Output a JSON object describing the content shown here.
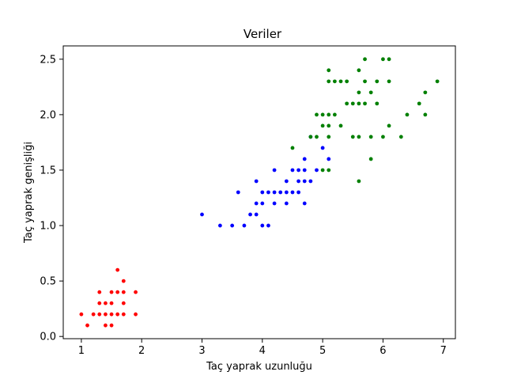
{
  "chart_data": {
    "type": "scatter",
    "title": "Veriler",
    "xlabel": "Taç yaprak uzunluğu",
    "ylabel": "Taç yaprak genişliği",
    "xlim": [
      0.7,
      7.2
    ],
    "ylim": [
      -0.02,
      2.62
    ],
    "xticks": [
      1,
      2,
      3,
      4,
      5,
      6,
      7
    ],
    "yticks": [
      0.0,
      0.5,
      1.0,
      1.5,
      2.0,
      2.5
    ],
    "xtick_labels": [
      "1",
      "2",
      "3",
      "4",
      "5",
      "6",
      "7"
    ],
    "ytick_labels": [
      "0.0",
      "0.5",
      "1.0",
      "1.5",
      "2.0",
      "2.5"
    ],
    "grid": false,
    "legend": null,
    "series": [
      {
        "color": "#ff0000",
        "points": [
          [
            1.0,
            0.2
          ],
          [
            1.1,
            0.1
          ],
          [
            1.2,
            0.2
          ],
          [
            1.3,
            0.2
          ],
          [
            1.4,
            0.2
          ],
          [
            1.5,
            0.2
          ],
          [
            1.6,
            0.2
          ],
          [
            1.7,
            0.2
          ],
          [
            1.9,
            0.2
          ],
          [
            1.3,
            0.3
          ],
          [
            1.4,
            0.3
          ],
          [
            1.5,
            0.3
          ],
          [
            1.7,
            0.3
          ],
          [
            1.3,
            0.4
          ],
          [
            1.5,
            0.4
          ],
          [
            1.6,
            0.4
          ],
          [
            1.7,
            0.4
          ],
          [
            1.9,
            0.4
          ],
          [
            1.4,
            0.1
          ],
          [
            1.5,
            0.1
          ],
          [
            1.6,
            0.6
          ],
          [
            1.7,
            0.5
          ]
        ]
      },
      {
        "color": "#0000ff",
        "points": [
          [
            3.0,
            1.1
          ],
          [
            3.3,
            1.0
          ],
          [
            3.5,
            1.0
          ],
          [
            3.6,
            1.3
          ],
          [
            3.7,
            1.0
          ],
          [
            3.8,
            1.1
          ],
          [
            3.9,
            1.1
          ],
          [
            3.9,
            1.2
          ],
          [
            3.9,
            1.4
          ],
          [
            4.0,
            1.0
          ],
          [
            4.0,
            1.2
          ],
          [
            4.0,
            1.3
          ],
          [
            4.1,
            1.0
          ],
          [
            4.1,
            1.3
          ],
          [
            4.2,
            1.2
          ],
          [
            4.2,
            1.3
          ],
          [
            4.2,
            1.5
          ],
          [
            4.3,
            1.3
          ],
          [
            4.4,
            1.2
          ],
          [
            4.4,
            1.3
          ],
          [
            4.4,
            1.4
          ],
          [
            4.5,
            1.3
          ],
          [
            4.5,
            1.5
          ],
          [
            4.6,
            1.3
          ],
          [
            4.6,
            1.4
          ],
          [
            4.6,
            1.5
          ],
          [
            4.7,
            1.2
          ],
          [
            4.7,
            1.4
          ],
          [
            4.7,
            1.5
          ],
          [
            4.7,
            1.6
          ],
          [
            4.8,
            1.4
          ],
          [
            4.8,
            1.8
          ],
          [
            4.9,
            1.5
          ],
          [
            5.0,
            1.7
          ],
          [
            5.1,
            1.6
          ]
        ]
      },
      {
        "color": "#008000",
        "points": [
          [
            4.5,
            1.7
          ],
          [
            4.8,
            1.8
          ],
          [
            4.9,
            1.8
          ],
          [
            4.9,
            2.0
          ],
          [
            5.0,
            1.5
          ],
          [
            5.0,
            1.9
          ],
          [
            5.0,
            2.0
          ],
          [
            5.1,
            1.5
          ],
          [
            5.1,
            1.8
          ],
          [
            5.1,
            1.9
          ],
          [
            5.1,
            2.0
          ],
          [
            5.1,
            2.3
          ],
          [
            5.1,
            2.4
          ],
          [
            5.2,
            2.0
          ],
          [
            5.2,
            2.3
          ],
          [
            5.3,
            1.9
          ],
          [
            5.3,
            2.3
          ],
          [
            5.4,
            2.1
          ],
          [
            5.4,
            2.3
          ],
          [
            5.5,
            1.8
          ],
          [
            5.5,
            2.1
          ],
          [
            5.6,
            1.4
          ],
          [
            5.6,
            1.8
          ],
          [
            5.6,
            2.1
          ],
          [
            5.6,
            2.2
          ],
          [
            5.6,
            2.4
          ],
          [
            5.7,
            2.1
          ],
          [
            5.7,
            2.3
          ],
          [
            5.7,
            2.5
          ],
          [
            5.8,
            1.6
          ],
          [
            5.8,
            1.8
          ],
          [
            5.8,
            2.2
          ],
          [
            5.9,
            2.1
          ],
          [
            5.9,
            2.3
          ],
          [
            6.0,
            1.8
          ],
          [
            6.0,
            2.5
          ],
          [
            6.1,
            1.9
          ],
          [
            6.1,
            2.3
          ],
          [
            6.1,
            2.5
          ],
          [
            6.3,
            1.8
          ],
          [
            6.4,
            2.0
          ],
          [
            6.6,
            2.1
          ],
          [
            6.7,
            2.0
          ],
          [
            6.7,
            2.2
          ],
          [
            6.9,
            2.3
          ]
        ]
      }
    ]
  }
}
